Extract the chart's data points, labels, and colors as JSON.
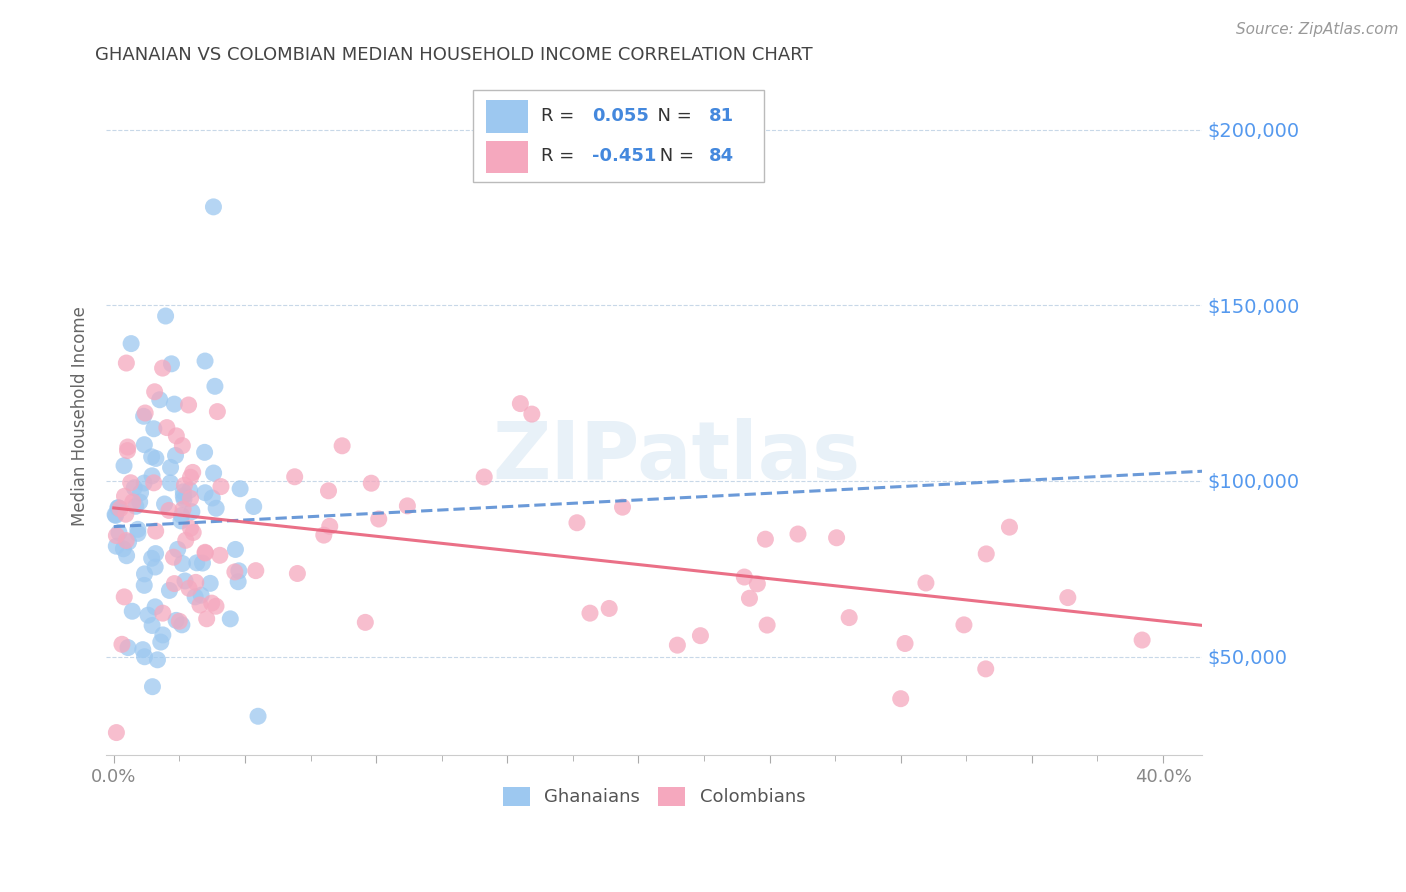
{
  "title": "GHANAIAN VS COLOMBIAN MEDIAN HOUSEHOLD INCOME CORRELATION CHART",
  "source": "Source: ZipAtlas.com",
  "ylabel": "Median Household Income",
  "ytick_labels": [
    "$50,000",
    "$100,000",
    "$150,000",
    "$200,000"
  ],
  "ytick_values": [
    50000,
    100000,
    150000,
    200000
  ],
  "ylim": [
    22000,
    215000
  ],
  "xlim": [
    -0.003,
    0.415
  ],
  "xtick_values": [
    0.0,
    0.05,
    0.1,
    0.15,
    0.2,
    0.25,
    0.3,
    0.35,
    0.4
  ],
  "xtick_labels": [
    "0.0%",
    "",
    "",
    "",
    "",
    "",
    "",
    "",
    "40.0%"
  ],
  "legend_r1": "0.055",
  "legend_n1": "81",
  "legend_r2": "-0.451",
  "legend_n2": "84",
  "watermark": "ZIPatlas",
  "ghanaian_color": "#9dc8f0",
  "colombian_color": "#f5a8be",
  "trend_ghanaian_color": "#5b8fd4",
  "trend_colombian_color": "#e8607a",
  "background_color": "#ffffff",
  "grid_color": "#c8d8e8",
  "title_color": "#444444",
  "source_color": "#999999",
  "ytick_color": "#5599ee",
  "xtick_color": "#888888",
  "ylabel_color": "#666666",
  "legend_text_color": "#333333",
  "legend_val_color": "#4488dd"
}
